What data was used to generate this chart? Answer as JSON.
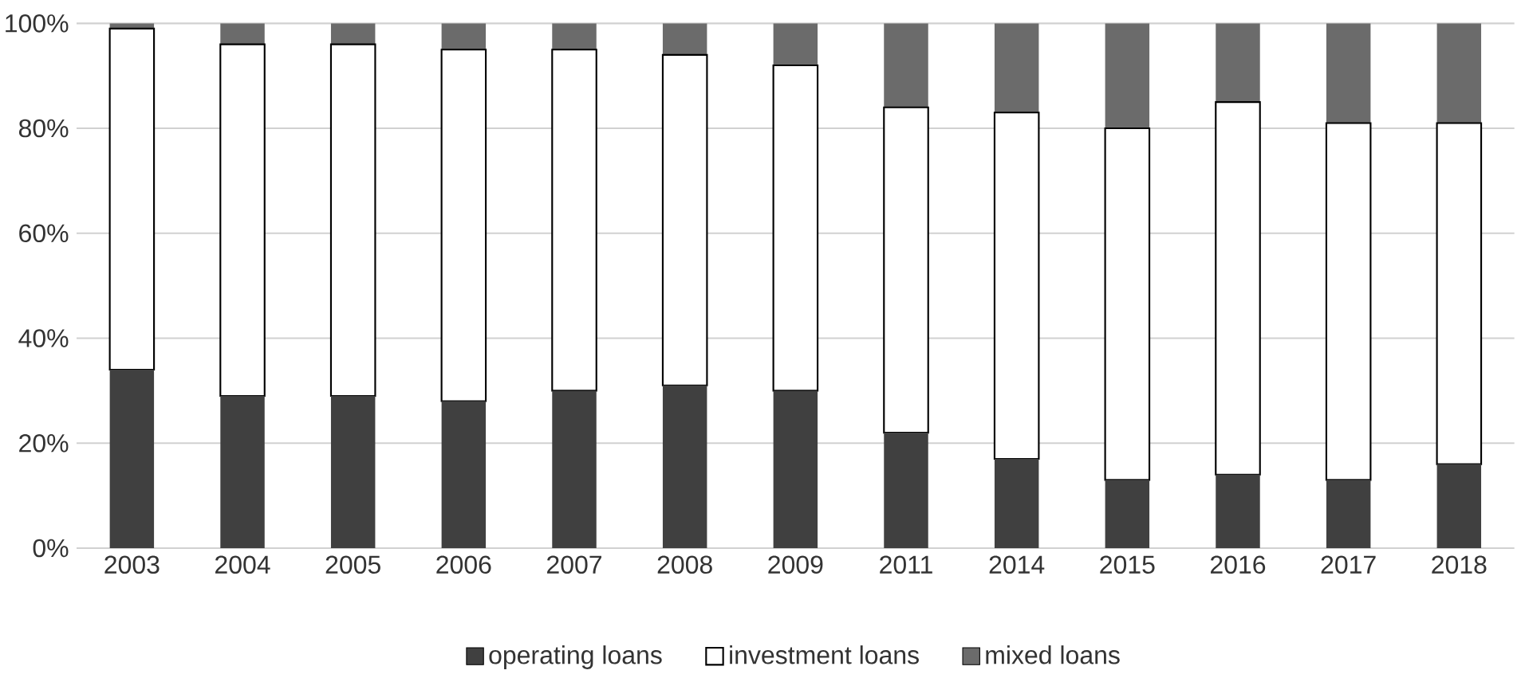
{
  "chart_data": {
    "type": "bar",
    "stacked": true,
    "categories": [
      "2003",
      "2004",
      "2005",
      "2006",
      "2007",
      "2008",
      "2009",
      "2011",
      "2014",
      "2015",
      "2016",
      "2017",
      "2018"
    ],
    "series": [
      {
        "name": "operating loans",
        "color": "#404040",
        "values": [
          34,
          29,
          29,
          28,
          30,
          31,
          30,
          22,
          17,
          13,
          14,
          13,
          16
        ]
      },
      {
        "name": "investment loans",
        "color": "#ffffff",
        "values": [
          65,
          67,
          67,
          67,
          65,
          63,
          62,
          62,
          66,
          67,
          71,
          68,
          65
        ]
      },
      {
        "name": "mixed loans",
        "color": "#6b6b6b",
        "values": [
          1,
          4,
          4,
          5,
          5,
          6,
          8,
          16,
          17,
          20,
          15,
          19,
          19
        ]
      }
    ],
    "ylim": [
      0,
      100
    ],
    "yticks": [
      {
        "value": 0,
        "label": "0%"
      },
      {
        "value": 20,
        "label": "20%"
      },
      {
        "value": 40,
        "label": "40%"
      },
      {
        "value": 60,
        "label": "60%"
      },
      {
        "value": 80,
        "label": "80%"
      },
      {
        "value": 100,
        "label": "100%"
      }
    ],
    "grid": "y",
    "legend": "bottom"
  }
}
